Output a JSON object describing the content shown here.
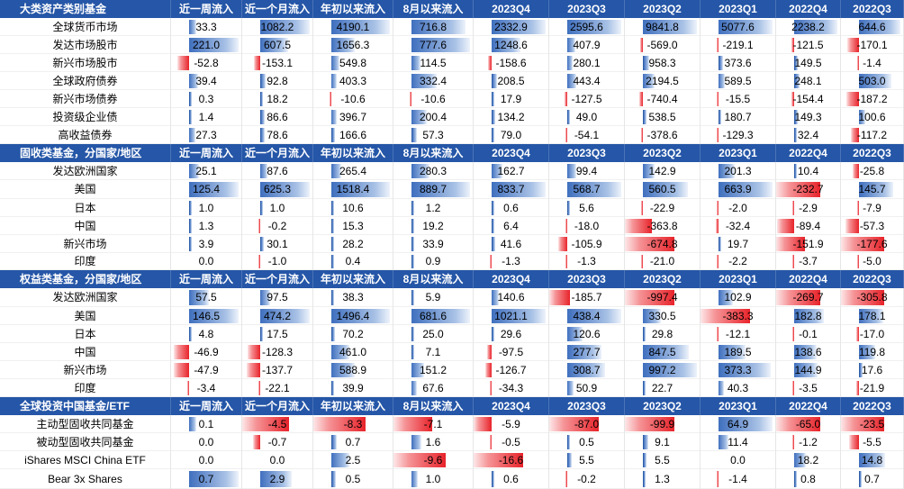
{
  "sections": [
    {
      "title": "大类资产类别基金",
      "columns": [
        "近一周流入",
        "近一个月流入",
        "年初以来流入",
        "8月以来流入",
        "2023Q4",
        "2023Q3",
        "2023Q2",
        "2023Q1",
        "2022Q4",
        "2022Q3"
      ],
      "rows": [
        {
          "name": "全球货币市场",
          "values": [
            33.3,
            1082.2,
            4190.1,
            716.8,
            2332.9,
            2595.6,
            9841.8,
            5077.6,
            2238.2,
            644.6
          ]
        },
        {
          "name": "发达市场股市",
          "values": [
            221.0,
            607.5,
            1656.3,
            777.6,
            1248.6,
            407.9,
            -569.0,
            -219.1,
            -121.5,
            -170.1
          ]
        },
        {
          "name": "新兴市场股市",
          "values": [
            -52.8,
            -153.1,
            549.8,
            114.5,
            -158.6,
            280.1,
            958.3,
            373.6,
            149.5,
            -1.4
          ]
        },
        {
          "name": "全球政府债券",
          "values": [
            39.4,
            92.8,
            403.3,
            332.4,
            208.5,
            443.4,
            2194.5,
            589.5,
            248.1,
            503.0
          ]
        },
        {
          "name": "新兴市场债券",
          "values": [
            0.3,
            18.2,
            -10.6,
            -10.6,
            17.9,
            -127.5,
            -740.4,
            -15.5,
            -154.4,
            -187.2
          ]
        },
        {
          "name": "投资级企业债",
          "values": [
            1.4,
            86.6,
            396.7,
            200.4,
            134.2,
            49.0,
            538.5,
            180.7,
            149.3,
            100.6
          ]
        },
        {
          "name": "高收益债券",
          "values": [
            27.3,
            78.6,
            166.6,
            57.3,
            79.0,
            -54.1,
            -378.6,
            -129.3,
            32.4,
            -117.2
          ]
        }
      ]
    },
    {
      "title": "固收类基金，分国家/地区",
      "columns": [
        "近一周流入",
        "近一个月流入",
        "年初以来流入",
        "8月以来流入",
        "2023Q4",
        "2023Q3",
        "2023Q2",
        "2023Q1",
        "2022Q4",
        "2022Q3"
      ],
      "rows": [
        {
          "name": "发达欧洲国家",
          "values": [
            25.1,
            87.6,
            265.4,
            280.3,
            162.7,
            99.4,
            142.9,
            201.3,
            10.4,
            -25.8
          ]
        },
        {
          "name": "美国",
          "values": [
            125.4,
            625.3,
            1518.4,
            889.7,
            833.7,
            568.7,
            560.5,
            663.9,
            -232.7,
            145.7
          ]
        },
        {
          "name": "日本",
          "values": [
            1.0,
            1.0,
            10.6,
            1.2,
            0.6,
            5.6,
            -22.9,
            -2.0,
            -2.9,
            -7.9
          ]
        },
        {
          "name": "中国",
          "values": [
            1.3,
            -0.2,
            15.3,
            19.2,
            6.4,
            -18.0,
            -363.8,
            -32.4,
            -89.4,
            -57.3
          ]
        },
        {
          "name": "新兴市场",
          "values": [
            3.9,
            30.1,
            28.2,
            33.9,
            41.6,
            -105.9,
            -674.8,
            19.7,
            -151.9,
            -177.6
          ]
        },
        {
          "name": "印度",
          "values": [
            0.0,
            -1.0,
            0.4,
            0.9,
            -1.3,
            -1.3,
            -21.0,
            -2.2,
            -3.7,
            -5.0
          ]
        }
      ]
    },
    {
      "title": "权益类基金，分国家/地区",
      "columns": [
        "近一周流入",
        "近一个月流入",
        "年初以来流入",
        "8月以来流入",
        "2023Q4",
        "2023Q3",
        "2023Q2",
        "2023Q1",
        "2022Q4",
        "2022Q3"
      ],
      "rows": [
        {
          "name": "发达欧洲国家",
          "values": [
            57.5,
            97.5,
            38.3,
            5.9,
            140.6,
            -185.7,
            -997.4,
            102.9,
            -269.7,
            -305.8
          ]
        },
        {
          "name": "美国",
          "values": [
            146.5,
            474.2,
            1496.4,
            681.6,
            1021.1,
            438.4,
            330.5,
            -383.3,
            182.8,
            178.1
          ]
        },
        {
          "name": "日本",
          "values": [
            4.8,
            17.5,
            70.2,
            25.0,
            29.6,
            120.6,
            29.8,
            -12.1,
            -0.1,
            -17.0
          ]
        },
        {
          "name": "中国",
          "values": [
            -46.9,
            -128.3,
            461.0,
            7.1,
            -97.5,
            277.7,
            847.5,
            189.5,
            138.6,
            119.8
          ]
        },
        {
          "name": "新兴市场",
          "values": [
            -47.9,
            -137.7,
            588.9,
            151.2,
            -126.7,
            308.7,
            997.2,
            373.3,
            144.9,
            17.6
          ]
        },
        {
          "name": "印度",
          "values": [
            -3.4,
            -22.1,
            39.9,
            67.6,
            -34.3,
            50.9,
            22.7,
            40.3,
            -3.5,
            -21.9
          ]
        }
      ]
    },
    {
      "title": "全球投资中国基金/ETF",
      "columns": [
        "近一周流入",
        "近一个月流入",
        "年初以来流入",
        "8月以来流入",
        "2023Q4",
        "2023Q3",
        "2023Q2",
        "2023Q1",
        "2022Q4",
        "2022Q3"
      ],
      "rows": [
        {
          "name": "主动型固收共同基金",
          "values": [
            0.1,
            -4.5,
            -8.3,
            -7.1,
            -5.9,
            -87.0,
            -99.9,
            64.9,
            -65.0,
            -23.5
          ]
        },
        {
          "name": "被动型固收共同基金",
          "values": [
            0.0,
            -0.7,
            0.7,
            1.6,
            -0.5,
            0.5,
            9.1,
            11.4,
            -1.2,
            -5.5
          ]
        },
        {
          "name": "iShares MSCI China ETF",
          "values": [
            0.0,
            0.0,
            2.5,
            -9.6,
            -16.6,
            5.5,
            5.5,
            0.0,
            18.2,
            14.8
          ]
        },
        {
          "name": "Bear 3x Shares",
          "values": [
            0.7,
            2.9,
            0.5,
            1.0,
            0.6,
            -0.2,
            1.3,
            -1.4,
            0.8,
            0.7
          ]
        }
      ]
    }
  ]
}
